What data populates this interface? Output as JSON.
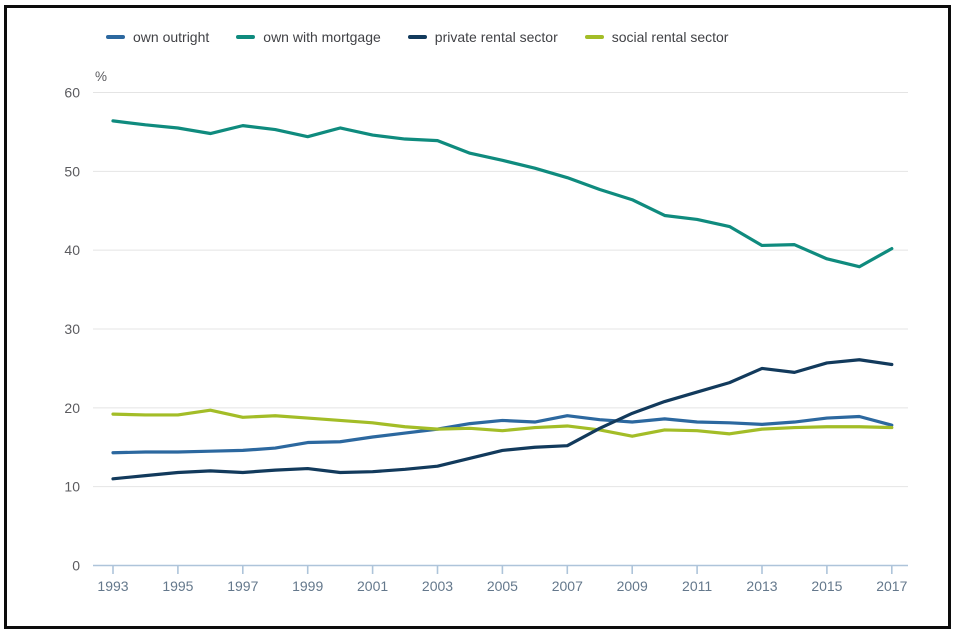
{
  "legend": {
    "items": [
      {
        "label": "own outright",
        "color": "#2c689f"
      },
      {
        "label": "own with mortgage",
        "color": "#0f8b7e"
      },
      {
        "label": "private rental sector",
        "color": "#123a5c"
      },
      {
        "label": "social rental sector",
        "color": "#a3bd27"
      }
    ]
  },
  "chart_data": {
    "type": "line",
    "title": "",
    "xlabel": "",
    "ylabel": "%",
    "unit_label": "%",
    "grid": "horizontal",
    "legend_position": "top",
    "ylim": [
      0,
      60
    ],
    "xlim": [
      1993,
      2017
    ],
    "y_ticks": [
      0,
      10,
      20,
      30,
      40,
      50,
      60
    ],
    "x_tick_labels": [
      "1993",
      "1995",
      "1997",
      "1999",
      "2001",
      "2003",
      "2005",
      "2007",
      "2009",
      "2011",
      "2013",
      "2015",
      "2017"
    ],
    "x": [
      1993,
      1994,
      1995,
      1996,
      1997,
      1998,
      1999,
      2000,
      2001,
      2002,
      2003,
      2004,
      2005,
      2006,
      2007,
      2008,
      2009,
      2010,
      2011,
      2012,
      2013,
      2014,
      2015,
      2016,
      2017
    ],
    "series": [
      {
        "name": "own outright",
        "color": "#2c689f",
        "values": [
          14.3,
          14.4,
          14.4,
          14.5,
          14.6,
          14.9,
          15.6,
          15.7,
          16.3,
          16.8,
          17.3,
          18.0,
          18.4,
          18.2,
          19.0,
          18.5,
          18.2,
          18.6,
          18.2,
          18.1,
          17.9,
          18.2,
          18.7,
          18.9,
          17.8
        ]
      },
      {
        "name": "own with mortgage",
        "color": "#0f8b7e",
        "values": [
          56.4,
          55.9,
          55.5,
          54.8,
          55.8,
          55.3,
          54.4,
          55.5,
          54.6,
          54.1,
          53.9,
          52.3,
          51.4,
          50.4,
          49.2,
          47.7,
          46.4,
          44.4,
          43.9,
          43.0,
          40.6,
          40.7,
          38.9,
          37.9,
          40.2
        ]
      },
      {
        "name": "private rental sector",
        "color": "#123a5c",
        "values": [
          11.0,
          11.4,
          11.8,
          12.0,
          11.8,
          12.1,
          12.3,
          11.8,
          11.9,
          12.2,
          12.6,
          13.6,
          14.6,
          15.0,
          15.2,
          17.4,
          19.3,
          20.8,
          22.0,
          23.2,
          25.0,
          24.5,
          25.7,
          26.1,
          25.5
        ]
      },
      {
        "name": "social rental sector",
        "color": "#a3bd27",
        "values": [
          19.2,
          19.1,
          19.1,
          19.7,
          18.8,
          19.0,
          18.7,
          18.4,
          18.1,
          17.6,
          17.3,
          17.4,
          17.1,
          17.5,
          17.7,
          17.2,
          16.4,
          17.2,
          17.1,
          16.7,
          17.3,
          17.5,
          17.6,
          17.6,
          17.5
        ]
      }
    ]
  },
  "colors": {
    "background": "#ffffff",
    "frame_border": "#0c0c0c",
    "gridline": "#e4e4e4",
    "axis_line": "#aec4da",
    "tick_mark": "#aec4da",
    "y_label_text": "#5b5b5f",
    "x_label_text": "#64788c",
    "legend_text": "#414246"
  }
}
